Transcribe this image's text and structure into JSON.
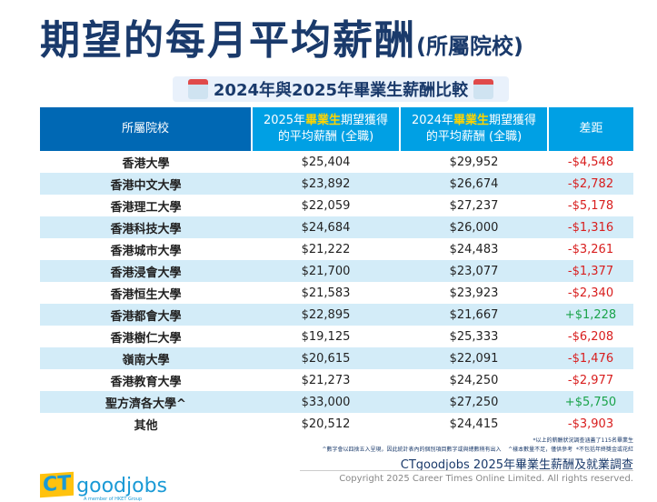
{
  "title": "期望的每月平均薪酬",
  "title_suffix": "(所屬院校)",
  "subtitle": "2024年與2025年畢業生薪酬比較",
  "headers": {
    "col0": "所屬院校",
    "col1_pre": "2025年",
    "col1_hl": "畢業生",
    "col1_post": "期望獲得",
    "col1_line2": "的平均薪酬 (全職)",
    "col2_pre": "2024年",
    "col2_hl": "畢業生",
    "col2_post": "期望獲得",
    "col2_line2": "的平均薪酬 (全職)",
    "col3": "差距"
  },
  "rows": [
    {
      "school": "香港大學",
      "y2025": "$25,404",
      "y2024": "$29,952",
      "diff": "-$4,548",
      "sign": "neg"
    },
    {
      "school": "香港中文大學",
      "y2025": "$23,892",
      "y2024": "$26,674",
      "diff": "-$2,782",
      "sign": "neg"
    },
    {
      "school": "香港理工大學",
      "y2025": "$22,059",
      "y2024": "$27,237",
      "diff": "-$5,178",
      "sign": "neg"
    },
    {
      "school": "香港科技大學",
      "y2025": "$24,684",
      "y2024": "$26,000",
      "diff": "-$1,316",
      "sign": "neg"
    },
    {
      "school": "香港城市大學",
      "y2025": "$21,222",
      "y2024": "$24,483",
      "diff": "-$3,261",
      "sign": "neg"
    },
    {
      "school": "香港浸會大學",
      "y2025": "$21,700",
      "y2024": "$23,077",
      "diff": "-$1,377",
      "sign": "neg"
    },
    {
      "school": "香港恒生大學",
      "y2025": "$21,583",
      "y2024": "$23,923",
      "diff": "-$2,340",
      "sign": "neg"
    },
    {
      "school": "香港都會大學",
      "y2025": "$22,895",
      "y2024": "$21,667",
      "diff": "+$1,228",
      "sign": "pos"
    },
    {
      "school": "香港樹仁大學",
      "y2025": "$19,125",
      "y2024": "$25,333",
      "diff": "-$6,208",
      "sign": "neg"
    },
    {
      "school": "嶺南大學",
      "y2025": "$20,615",
      "y2024": "$22,091",
      "diff": "-$1,476",
      "sign": "neg"
    },
    {
      "school": "香港教育大學",
      "y2025": "$21,273",
      "y2024": "$24,250",
      "diff": "-$2,977",
      "sign": "neg"
    },
    {
      "school": "聖方濟各大學^",
      "y2025": "$33,000",
      "y2024": "$27,250",
      "diff": "+$5,750",
      "sign": "pos"
    },
    {
      "school": "其他",
      "y2025": "$20,512",
      "y2024": "$24,415",
      "diff": "-$3,903",
      "sign": "neg"
    }
  ],
  "notes": {
    "n1": "*以上的薪酬狀況調查涵蓋了115名畢業生",
    "n2": "^數字會以四捨五入呈現，因此統計表內的個別項目數字或與總數稍有出入",
    "n3": "^樣本數量不足，僅供參考",
    "n4": "*不包括年終獎金或花紅"
  },
  "source": "CTgoodjobs 2025年畢業生薪酬及就業調查",
  "copyright": "Copyright 2025 Career Times Online Limited. All rights reserved.",
  "logo": {
    "ct": "CT",
    "goodjobs": "goodjobs",
    "member": "A member of HKET Group"
  },
  "colors": {
    "navy": "#1a3a6b",
    "header_dark": "#0068b4",
    "header_light": "#00a0e4",
    "highlight": "#ffd400",
    "negative": "#d81e1e",
    "positive": "#1aa34a",
    "row_alt": "#d3ecf8"
  }
}
